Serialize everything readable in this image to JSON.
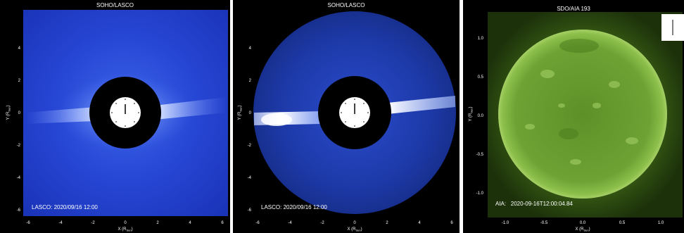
{
  "panels": [
    {
      "title": "SOHO/LASCO",
      "timestamp": "LASCO: 2020/09/16 12:00",
      "x_label": "X (R",
      "x_label_sub": "Sun",
      "y_label": "Y (R",
      "y_label_sub": "Sun",
      "x_ticks": [
        "-6",
        "-4",
        "-2",
        "0",
        "2",
        "4",
        "6"
      ],
      "y_ticks": [
        "4",
        "2",
        "0",
        "-2",
        "-4",
        "-6"
      ]
    },
    {
      "title": "SOHO/LASCO",
      "timestamp": "LASCO: 2020/09/16 12:00",
      "x_label": "X (R",
      "x_label_sub": "Sun",
      "y_label": "Y (R",
      "y_label_sub": "Sun",
      "x_ticks": [
        "-6",
        "-4",
        "-2",
        "0",
        "2",
        "4",
        "6"
      ],
      "y_ticks": [
        "4",
        "2",
        "0",
        "-2",
        "-4",
        "-6"
      ]
    },
    {
      "title": "SDO/AIA 193",
      "timestamp": "AIA:   2020-09-16T12:00:04.84",
      "x_label": "X (R",
      "x_label_sub": "Sun",
      "y_label": "Y (R",
      "y_label_sub": "Sun",
      "x_ticks": [
        "-1.0",
        "-0.5",
        "0.0",
        "0.5",
        "1.0"
      ],
      "y_ticks": [
        "1.0",
        "0.5",
        "0.0",
        "-0.5",
        "-1.0"
      ]
    }
  ],
  "colors": {
    "lasco_blue": "#1d3fc9",
    "aia_green": "#6fa83a",
    "occulter": "#000000"
  }
}
